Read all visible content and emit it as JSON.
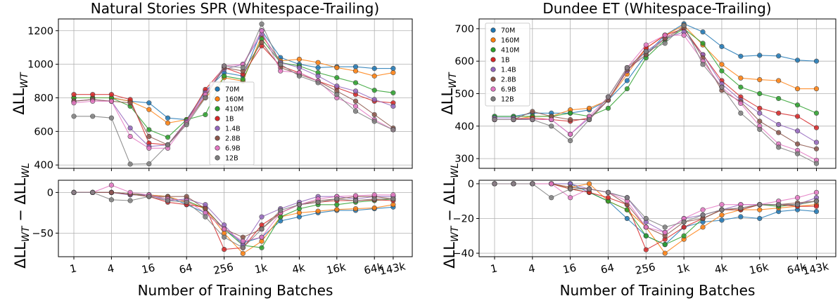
{
  "chart_data": {
    "type": "line",
    "x_tick_labels": [
      "1",
      "4",
      "16",
      "64",
      "256",
      "1k",
      "4k",
      "16k",
      "64k",
      "143k"
    ],
    "x_positions": [
      "1",
      "2",
      "4",
      "8",
      "16",
      "32",
      "64",
      "128",
      "256",
      "512",
      "1k",
      "2k",
      "4k",
      "8k",
      "16k",
      "32k",
      "64k",
      "143k"
    ],
    "series_names": [
      "70M",
      "160M",
      "410M",
      "1B",
      "1.4B",
      "2.8B",
      "6.9B",
      "12B"
    ],
    "colors": [
      "#1f77b4",
      "#ff7f0e",
      "#2ca02c",
      "#d62728",
      "#9467bd",
      "#8c564b",
      "#e377c2",
      "#7f7f7f"
    ],
    "panels": [
      {
        "title": "Natural Stories SPR (Whitespace-Trailing)",
        "xlabel": "Number of Training Batches",
        "top": {
          "ylabel_main": "ΔLL",
          "ylabel_sub": "WT",
          "ylim": [
            380,
            1270
          ],
          "yticks": [
            400,
            600,
            800,
            1000,
            1200
          ],
          "legend_position": "center",
          "series": [
            [
              800,
              800,
              800,
              780,
              770,
              680,
              670,
              840,
              950,
              930,
              1200,
              1040,
              1000,
              980,
              985,
              985,
              975,
              975
            ],
            [
              800,
              800,
              800,
              780,
              730,
              650,
              670,
              800,
              920,
              900,
              1170,
              1020,
              1030,
              1010,
              980,
              960,
              930,
              950
            ],
            [
              800,
              800,
              800,
              750,
              610,
              565,
              670,
              700,
              930,
              910,
              1150,
              1010,
              990,
              950,
              920,
              890,
              845,
              830
            ],
            [
              820,
              820,
              820,
              790,
              530,
              520,
              660,
              850,
              980,
              940,
              1110,
              990,
              950,
              900,
              860,
              820,
              780,
              770
            ],
            [
              780,
              790,
              780,
              620,
              510,
              520,
              660,
              830,
              970,
              1000,
              1180,
              1010,
              980,
              930,
              870,
              840,
              790,
              750
            ],
            [
              780,
              790,
              780,
              770,
              570,
              520,
              650,
              810,
              980,
              960,
              1130,
              980,
              940,
              900,
              840,
              780,
              700,
              620
            ],
            [
              770,
              780,
              780,
              570,
              500,
              500,
              650,
              820,
              990,
              1000,
              1200,
              960,
              950,
              900,
              800,
              750,
              670,
              610
            ],
            [
              690,
              690,
              680,
              405,
              407,
              520,
              640,
              800,
              990,
              980,
              1240,
              1000,
              930,
              890,
              820,
              720,
              660,
              610
            ]
          ]
        },
        "bottom": {
          "ylabel": "ΔLL_WT − ΔLL_WL",
          "ylim": [
            -79,
            15
          ],
          "yticks": [
            0,
            -50
          ],
          "series": [
            [
              0,
              0,
              0,
              -2,
              -3,
              -5,
              -15,
              -25,
              -45,
              -62,
              -55,
              -35,
              -30,
              -25,
              -22,
              -22,
              -20,
              -18
            ],
            [
              0,
              0,
              0,
              -2,
              -3,
              -5,
              -12,
              -20,
              -50,
              -75,
              -60,
              -30,
              -25,
              -23,
              -21,
              -20,
              -19,
              -15
            ],
            [
              0,
              0,
              0,
              -2,
              -3,
              -8,
              -10,
              -20,
              -45,
              -65,
              -68,
              -30,
              -20,
              -15,
              -15,
              -12,
              -10,
              -8
            ],
            [
              0,
              0,
              0,
              -2,
              -5,
              -12,
              -15,
              -18,
              -70,
              -68,
              -40,
              -25,
              -15,
              -12,
              -10,
              -10,
              -9,
              -10
            ],
            [
              0,
              0,
              0,
              -3,
              -3,
              -10,
              -8,
              -15,
              -40,
              -65,
              -30,
              -20,
              -12,
              -5,
              -5,
              -8,
              -5,
              -5
            ],
            [
              0,
              0,
              0,
              -2,
              -5,
              -5,
              -5,
              -20,
              -45,
              -55,
              -45,
              -25,
              -15,
              -10,
              -8,
              -5,
              -5,
              -8
            ],
            [
              0,
              0,
              9,
              0,
              -3,
              -8,
              -10,
              -25,
              -45,
              -60,
              -55,
              -25,
              -15,
              -8,
              -5,
              -4,
              -3,
              -3
            ],
            [
              0,
              0,
              -9,
              -10,
              -5,
              -10,
              -12,
              -30,
              -55,
              -68,
              -45,
              -22,
              -15,
              -12,
              -8,
              -10,
              -8,
              -8
            ]
          ]
        }
      },
      {
        "title": "Dundee ET  (Whitespace-Trailing)",
        "xlabel": "Number of Training Batches",
        "top": {
          "ylabel_main": "ΔLL",
          "ylabel_sub": "WT",
          "ylim": [
            270,
            730
          ],
          "yticks": [
            300,
            400,
            500,
            600,
            700
          ],
          "legend_position": "upper left",
          "series": [
            [
              430,
              430,
              440,
              440,
              440,
              450,
              480,
              540,
              620,
              680,
              715,
              690,
              645,
              615,
              618,
              616,
              603,
              600
            ],
            [
              420,
              420,
              430,
              430,
              450,
              455,
              480,
              560,
              640,
              680,
              710,
              650,
              590,
              548,
              543,
              540,
              515,
              515
            ],
            [
              430,
              430,
              430,
              430,
              440,
              430,
              455,
              515,
              610,
              665,
              700,
              655,
              570,
              520,
              500,
              485,
              465,
              440
            ],
            [
              420,
              420,
              425,
              420,
              415,
              425,
              480,
              570,
              640,
              680,
              700,
              620,
              540,
              490,
              455,
              440,
              430,
              395
            ],
            [
              425,
              425,
              420,
              420,
              375,
              425,
              480,
              570,
              630,
              670,
              690,
              620,
              530,
              480,
              440,
              405,
              385,
              350
            ],
            [
              420,
              420,
              445,
              430,
              420,
              420,
              480,
              575,
              620,
              670,
              705,
              610,
              510,
              475,
              415,
              380,
              345,
              330
            ],
            [
              420,
              420,
              420,
              420,
              375,
              430,
              490,
              580,
              650,
              680,
              680,
              600,
              520,
              470,
              400,
              345,
              325,
              295
            ],
            [
              420,
              420,
              420,
              400,
              355,
              420,
              490,
              580,
              630,
              655,
              710,
              590,
              520,
              440,
              390,
              335,
              315,
              285
            ]
          ]
        },
        "bottom": {
          "ylabel": "ΔLL_WT − ΔLL_WL",
          "ylim": [
            -42,
            2
          ],
          "yticks": [
            0,
            -20,
            -40
          ],
          "series": [
            [
              0,
              0,
              0,
              0,
              0,
              -5,
              -10,
              -20,
              -30,
              -35,
              -25,
              -22,
              -21,
              -19,
              -20,
              -16,
              -15,
              -16
            ],
            [
              0,
              0,
              0,
              0,
              -2,
              0,
              -10,
              -15,
              -25,
              -40,
              -32,
              -25,
              -18,
              -15,
              -15,
              -14,
              -13,
              -12
            ],
            [
              0,
              0,
              0,
              0,
              -3,
              -5,
              -10,
              -15,
              -30,
              -35,
              -30,
              -20,
              -15,
              -15,
              -12,
              -13,
              -12,
              -10
            ],
            [
              0,
              0,
              0,
              0,
              -3,
              -5,
              -8,
              -12,
              -38,
              -32,
              -25,
              -20,
              -15,
              -15,
              -12,
              -12,
              -13,
              -13
            ],
            [
              0,
              0,
              0,
              0,
              0,
              -3,
              -5,
              -8,
              -22,
              -28,
              -20,
              -18,
              -15,
              -12,
              -12,
              -12,
              -12,
              -8
            ],
            [
              0,
              0,
              0,
              0,
              -2,
              -3,
              -5,
              -12,
              -25,
              -30,
              -22,
              -20,
              -15,
              -14,
              -12,
              -12,
              -11,
              -10
            ],
            [
              0,
              0,
              0,
              0,
              -8,
              -3,
              -5,
              -10,
              -25,
              -28,
              -20,
              -15,
              -12,
              -12,
              -12,
              -10,
              -8,
              -5
            ],
            [
              0,
              0,
              0,
              -8,
              -3,
              -3,
              -5,
              -8,
              -20,
              -25,
              -22,
              -18,
              -15,
              -14,
              -12,
              -12,
              -12,
              -10
            ]
          ]
        }
      }
    ]
  }
}
